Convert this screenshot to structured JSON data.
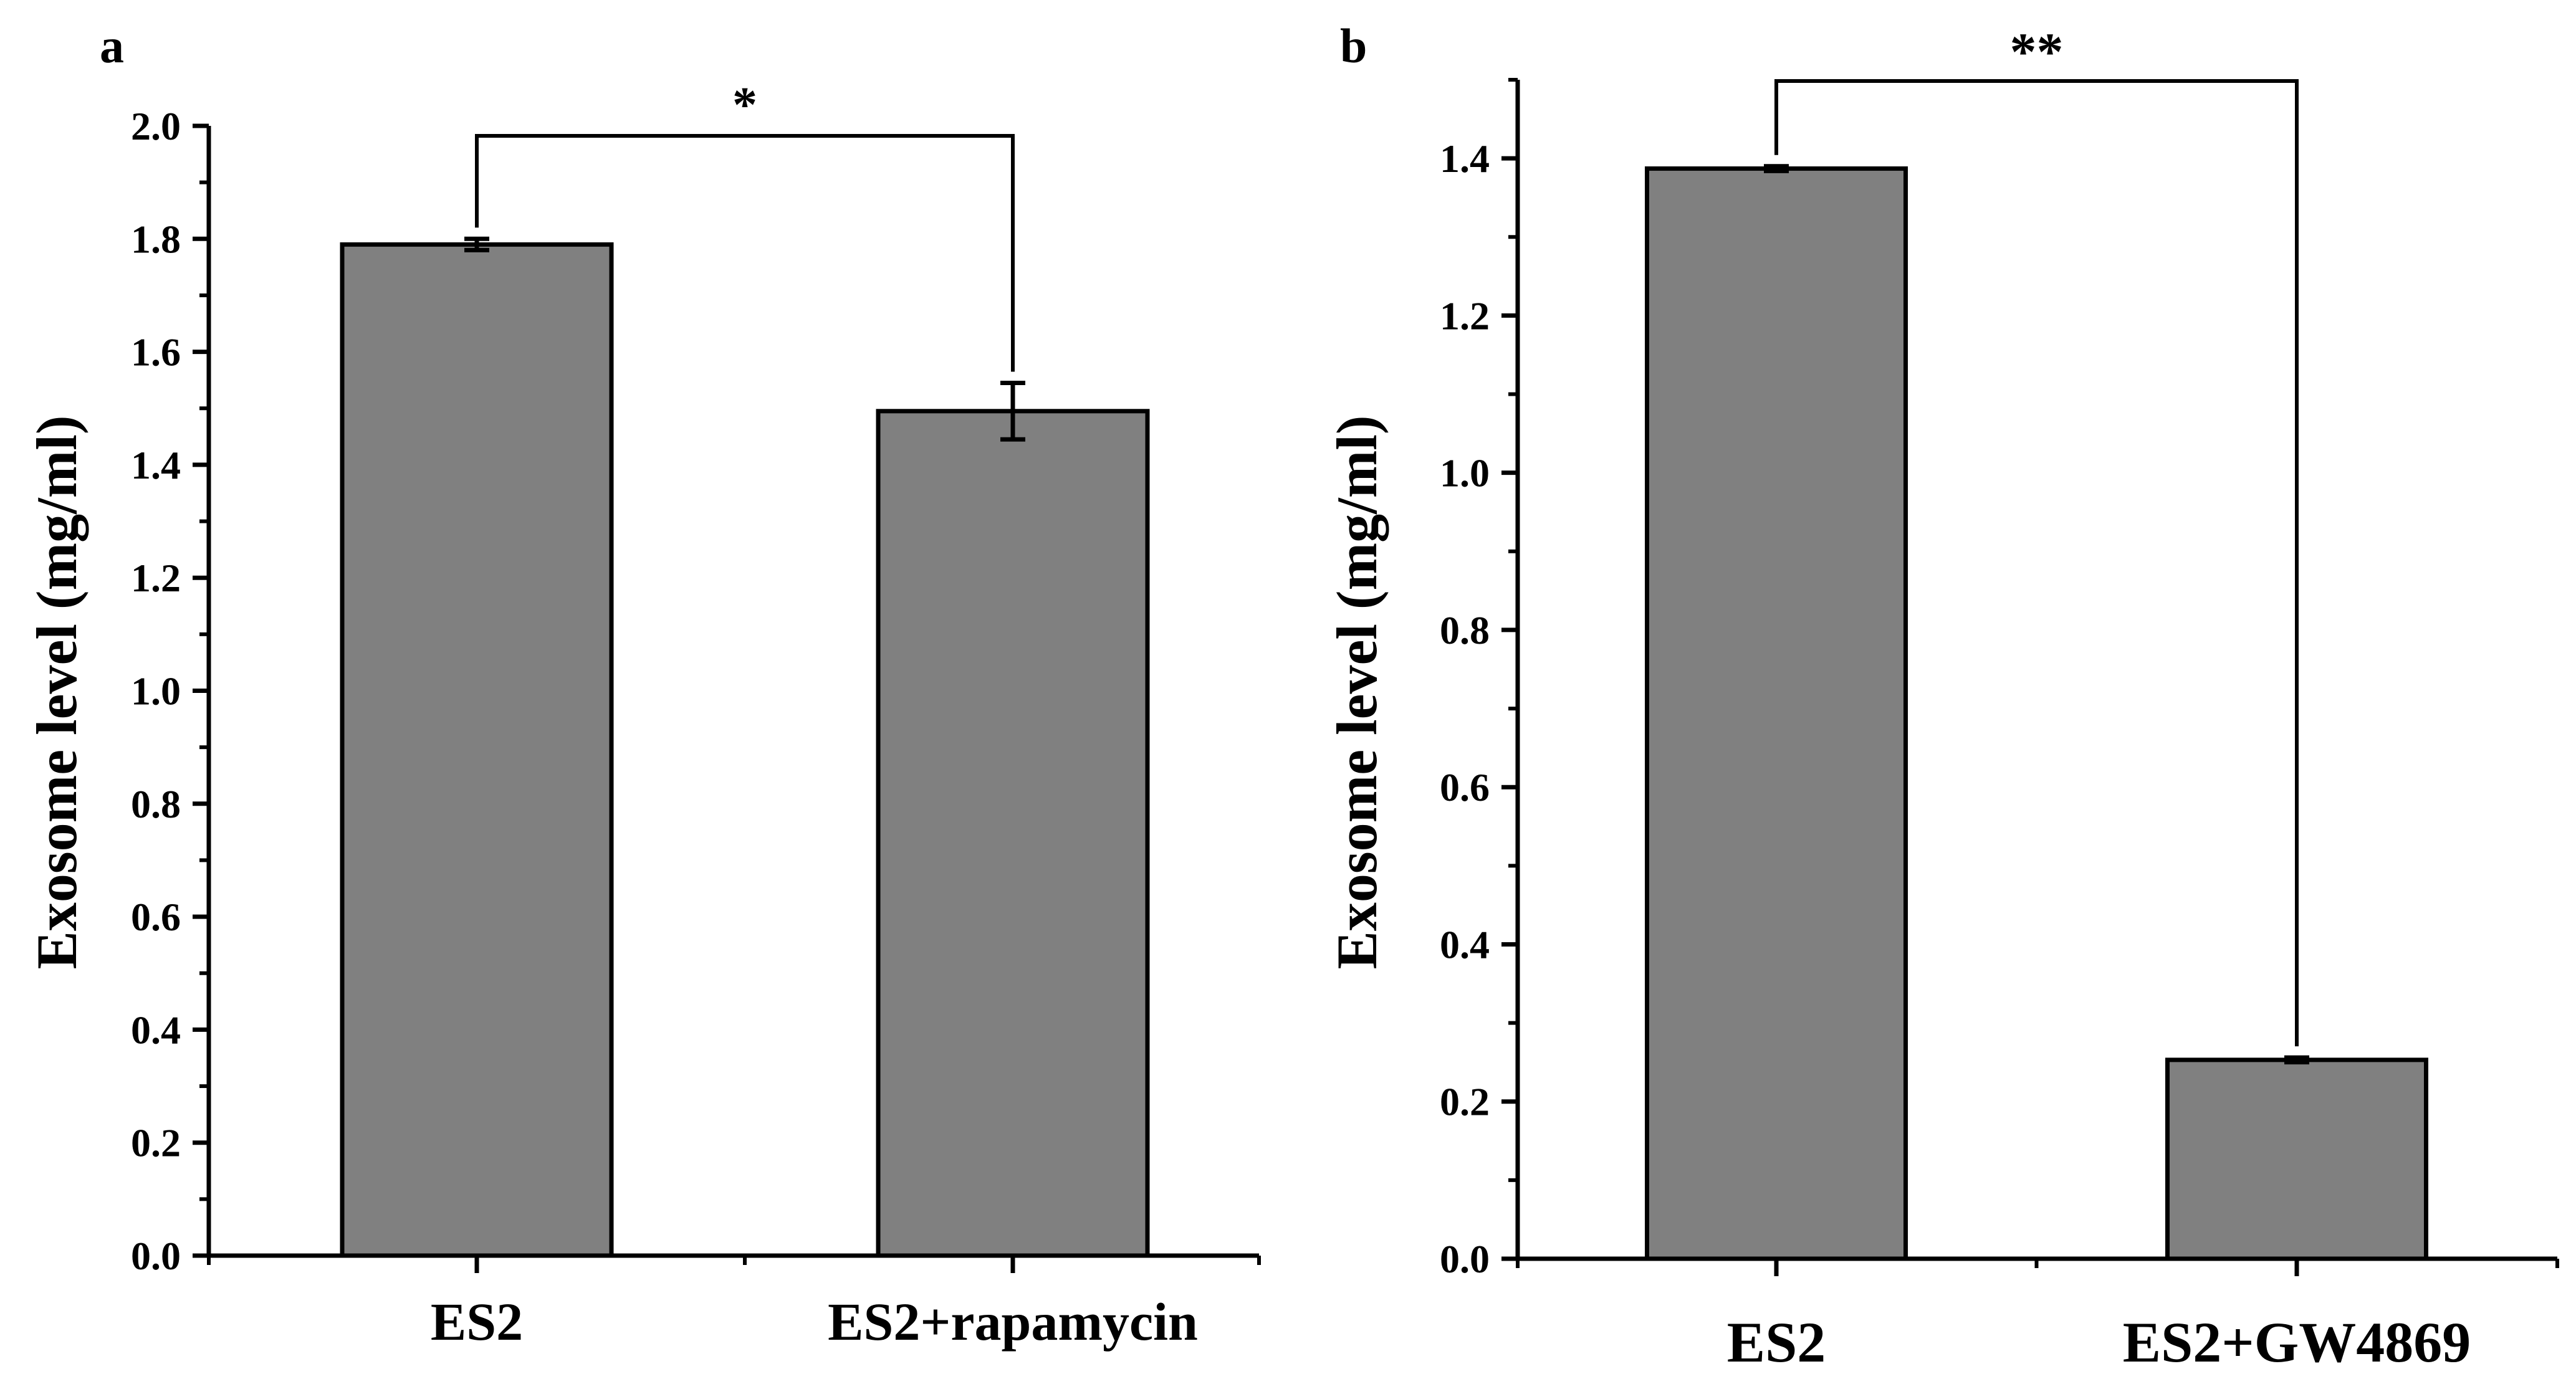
{
  "figure": {
    "background": "#ffffff"
  },
  "colors": {
    "bar_fill": "#808080",
    "stroke": "#000000"
  },
  "chart_data": [
    {
      "panel_label": "a",
      "type": "bar",
      "categories": [
        "ES2",
        "ES2+rapamycin"
      ],
      "values": [
        1.79,
        1.495
      ],
      "errors": [
        0.01,
        0.05
      ],
      "ylabel": "Exosome level (mg/ml)",
      "xlabel": "",
      "ylim": [
        0,
        2.0
      ],
      "yticks": [
        "0.0",
        "0.2",
        "0.4",
        "0.6",
        "0.8",
        "1.0",
        "1.2",
        "1.4",
        "1.6",
        "1.8",
        "2.0"
      ],
      "significance": {
        "text": "*",
        "between": [
          0,
          1
        ]
      }
    },
    {
      "panel_label": "b",
      "type": "bar",
      "categories": [
        "ES2",
        "ES2+GW4869"
      ],
      "values": [
        1.387,
        0.253
      ],
      "errors": [
        0.003,
        0.003
      ],
      "ylabel": "Exosome level (mg/ml)",
      "xlabel": "",
      "ylim": [
        0,
        1.5
      ],
      "yticks": [
        "0.0",
        "0.2",
        "0.4",
        "0.6",
        "0.8",
        "1.0",
        "1.2",
        "1.4"
      ],
      "significance": {
        "text": "**",
        "between": [
          0,
          1
        ]
      }
    }
  ]
}
